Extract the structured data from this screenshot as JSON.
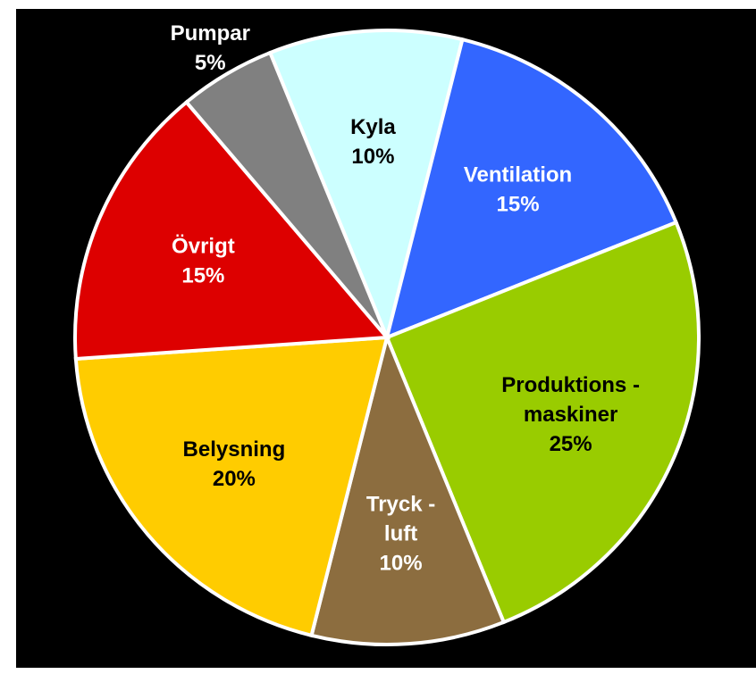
{
  "chart_data": {
    "type": "pie",
    "categories": [
      [
        "Kyla"
      ],
      [
        "Ventilation"
      ],
      [
        "Produktions -",
        "maskiner"
      ],
      [
        "Tryck -",
        "luft"
      ],
      [
        "Belysning"
      ],
      [
        "Övrigt"
      ],
      [
        "Pumpar"
      ]
    ],
    "values": [
      10,
      15,
      25,
      10,
      20,
      15,
      5
    ],
    "value_labels": [
      "10%",
      "15%",
      "25%",
      "10%",
      "20%",
      "15%",
      "5%"
    ],
    "colors": [
      "#ccffff",
      "#3366ff",
      "#99cc00",
      "#8c6d3f",
      "#ffcc00",
      "#dd0000",
      "#808080"
    ],
    "label_colors": [
      "#000000",
      "#ffffff",
      "#000000",
      "#ffffff",
      "#000000",
      "#ffffff",
      "#ffffff"
    ],
    "start_angle": -22,
    "direction": "clockwise"
  }
}
